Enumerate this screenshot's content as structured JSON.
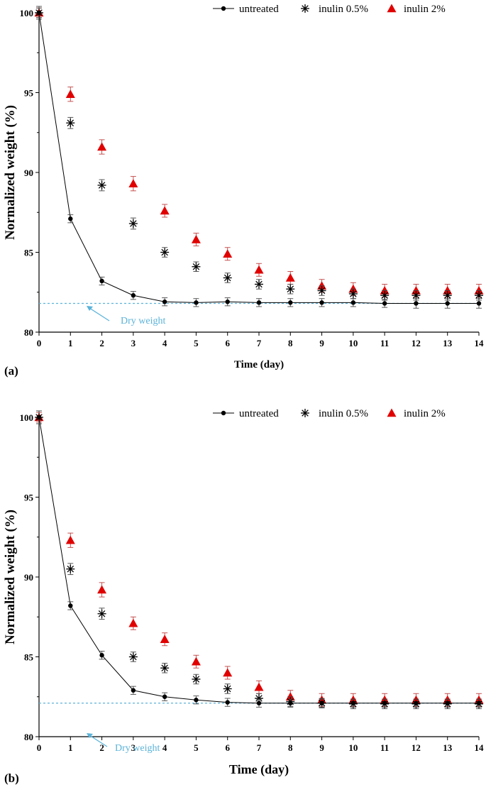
{
  "chart_data": [
    {
      "type": "scatter",
      "panel_label": "(a)",
      "ylabel": "Normalized weight (%)",
      "xlabel": "Time (day)",
      "xlim": [
        0,
        14
      ],
      "ylim": [
        80,
        100
      ],
      "x_ticks": [
        "0",
        "1",
        "2",
        "3",
        "4",
        "5",
        "6",
        "7",
        "8",
        "9",
        "10",
        "11",
        "12",
        "13",
        "14"
      ],
      "y_ticks": [
        "80",
        "85",
        "90",
        "95",
        "100"
      ],
      "x": [
        0,
        1,
        2,
        3,
        4,
        5,
        6,
        7,
        8,
        9,
        10,
        11,
        12,
        13,
        14
      ],
      "series": [
        {
          "name": "untreated",
          "marker": "dot-line",
          "color": "#000000",
          "values": [
            100,
            87.1,
            83.2,
            82.3,
            81.9,
            81.85,
            81.9,
            81.85,
            81.85,
            81.85,
            81.85,
            81.8,
            81.8,
            81.8,
            81.8
          ],
          "errors": [
            0.3,
            0.25,
            0.25,
            0.25,
            0.25,
            0.25,
            0.25,
            0.25,
            0.25,
            0.25,
            0.25,
            0.25,
            0.3,
            0.3,
            0.3
          ]
        },
        {
          "name": "inulin 0.5%",
          "marker": "asterisk",
          "color": "#000000",
          "values": [
            100,
            93.1,
            89.2,
            86.8,
            85.0,
            84.1,
            83.4,
            83.0,
            82.7,
            82.6,
            82.4,
            82.3,
            82.3,
            82.3,
            82.3
          ],
          "errors": [
            0.4,
            0.35,
            0.35,
            0.35,
            0.3,
            0.3,
            0.3,
            0.3,
            0.3,
            0.3,
            0.3,
            0.3,
            0.3,
            0.3,
            0.3
          ]
        },
        {
          "name": "inulin 2%",
          "marker": "triangle",
          "color": "#e00000",
          "values": [
            100,
            94.9,
            91.6,
            89.3,
            87.6,
            85.8,
            84.9,
            83.9,
            83.4,
            82.9,
            82.7,
            82.6,
            82.6,
            82.6,
            82.6
          ],
          "errors": [
            0.3,
            0.45,
            0.45,
            0.45,
            0.4,
            0.4,
            0.4,
            0.4,
            0.4,
            0.4,
            0.4,
            0.4,
            0.4,
            0.4,
            0.4
          ]
        }
      ],
      "annotation": {
        "text": "Dry weight",
        "reference_y": 81.8,
        "color": "#5bb3d9"
      },
      "legend_position": "top-right"
    },
    {
      "type": "scatter",
      "panel_label": "(b)",
      "ylabel": "Normalized weight (%)",
      "xlabel": "Time (day)",
      "xlim": [
        0,
        14
      ],
      "ylim": [
        80,
        100
      ],
      "x_ticks": [
        "0",
        "1",
        "2",
        "3",
        "4",
        "5",
        "6",
        "7",
        "8",
        "9",
        "10",
        "11",
        "12",
        "13",
        "14"
      ],
      "y_ticks": [
        "80",
        "85",
        "90",
        "95",
        "100"
      ],
      "x": [
        0,
        1,
        2,
        3,
        4,
        5,
        6,
        7,
        8,
        9,
        10,
        11,
        12,
        13,
        14
      ],
      "series": [
        {
          "name": "untreated",
          "marker": "dot-line",
          "color": "#000000",
          "values": [
            100,
            88.2,
            85.1,
            82.9,
            82.5,
            82.3,
            82.15,
            82.1,
            82.1,
            82.1,
            82.1,
            82.1,
            82.1,
            82.1,
            82.1
          ],
          "errors": [
            0.4,
            0.25,
            0.25,
            0.25,
            0.25,
            0.25,
            0.25,
            0.25,
            0.25,
            0.25,
            0.25,
            0.25,
            0.25,
            0.25,
            0.25
          ]
        },
        {
          "name": "inulin 0.5%",
          "marker": "asterisk",
          "color": "#000000",
          "values": [
            100,
            90.5,
            87.7,
            85.0,
            84.3,
            83.6,
            83.0,
            82.4,
            82.2,
            82.1,
            82.05,
            82.05,
            82.05,
            82.05,
            82.05
          ],
          "errors": [
            0.4,
            0.35,
            0.35,
            0.3,
            0.3,
            0.3,
            0.3,
            0.3,
            0.3,
            0.3,
            0.3,
            0.3,
            0.3,
            0.3,
            0.3
          ]
        },
        {
          "name": "inulin 2%",
          "marker": "triangle",
          "color": "#e00000",
          "values": [
            100,
            92.3,
            89.2,
            87.1,
            86.1,
            84.7,
            84.0,
            83.1,
            82.5,
            82.3,
            82.3,
            82.3,
            82.3,
            82.3,
            82.3
          ],
          "errors": [
            0.3,
            0.45,
            0.45,
            0.4,
            0.4,
            0.4,
            0.4,
            0.4,
            0.4,
            0.4,
            0.4,
            0.4,
            0.4,
            0.4,
            0.4
          ]
        }
      ],
      "annotation": {
        "text": "Dry weight",
        "reference_y": 82.1,
        "color": "#5bb3d9"
      },
      "legend_position": "top-right"
    }
  ]
}
